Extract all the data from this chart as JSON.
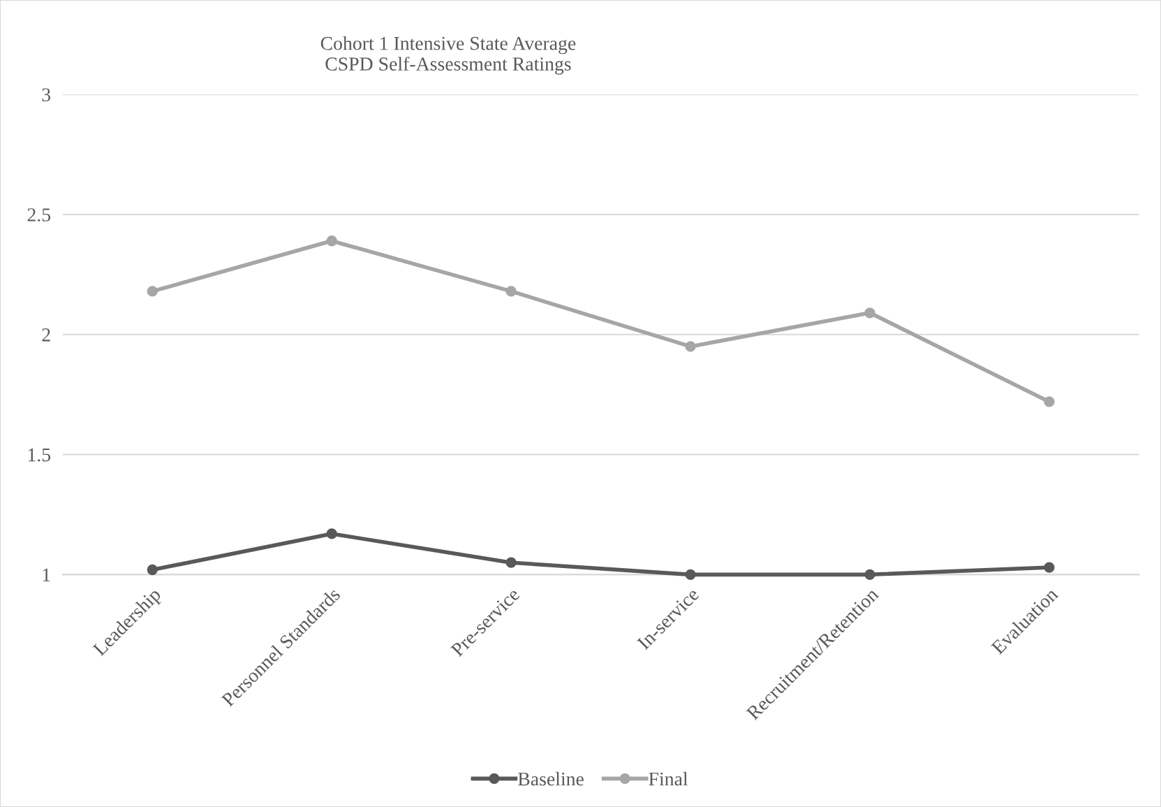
{
  "chart_data": {
    "type": "line",
    "title": "Cohort 1 Intensive State Average\nCSPD Self-Assessment Ratings",
    "categories": [
      "Leadership",
      "Personnel Standards",
      "Pre-service",
      "In-service",
      "Recruitment/Retention",
      "Evaluation"
    ],
    "series": [
      {
        "name": "Baseline",
        "color": "#595959",
        "values": [
          1.02,
          1.17,
          1.05,
          1.0,
          1.0,
          1.03
        ]
      },
      {
        "name": "Final",
        "color": "#a6a6a6",
        "values": [
          2.18,
          2.39,
          2.18,
          1.95,
          2.09,
          1.72
        ]
      }
    ],
    "ylim": [
      1,
      3
    ],
    "yticks": [
      1,
      1.5,
      2,
      2.5,
      3
    ],
    "grid": "y",
    "legend": "bottom",
    "marker": "circle",
    "line_style": "solid"
  }
}
